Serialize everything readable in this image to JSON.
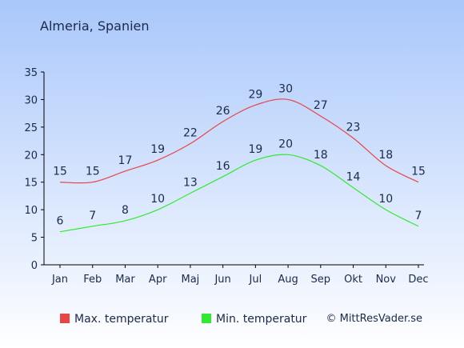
{
  "title": "Almeria, Spanien",
  "copyright": "© MittResVader.se",
  "colors": {
    "max": "#e84545",
    "min": "#33e833",
    "text": "#1a2a4a",
    "axis": "#000000",
    "bg_top": "#a9c7fb",
    "bg_bottom": "#ffffff"
  },
  "chart_data": {
    "type": "line",
    "categories": [
      "Jan",
      "Feb",
      "Mar",
      "Apr",
      "Maj",
      "Jun",
      "Jul",
      "Aug",
      "Sep",
      "Okt",
      "Nov",
      "Dec"
    ],
    "series": [
      {
        "name": "Max. temperatur",
        "values": [
          15,
          15,
          17,
          19,
          22,
          26,
          29,
          30,
          27,
          23,
          18,
          15
        ]
      },
      {
        "name": "Min. temperatur",
        "values": [
          6,
          7,
          8,
          10,
          13,
          16,
          19,
          20,
          18,
          14,
          10,
          7
        ]
      }
    ],
    "title": "Almeria, Spanien",
    "xlabel": "",
    "ylabel": "",
    "ylim": [
      0,
      35
    ],
    "yticks": [
      0,
      5,
      10,
      15,
      20,
      25,
      30,
      35
    ],
    "grid": false,
    "legend": "bottom"
  }
}
